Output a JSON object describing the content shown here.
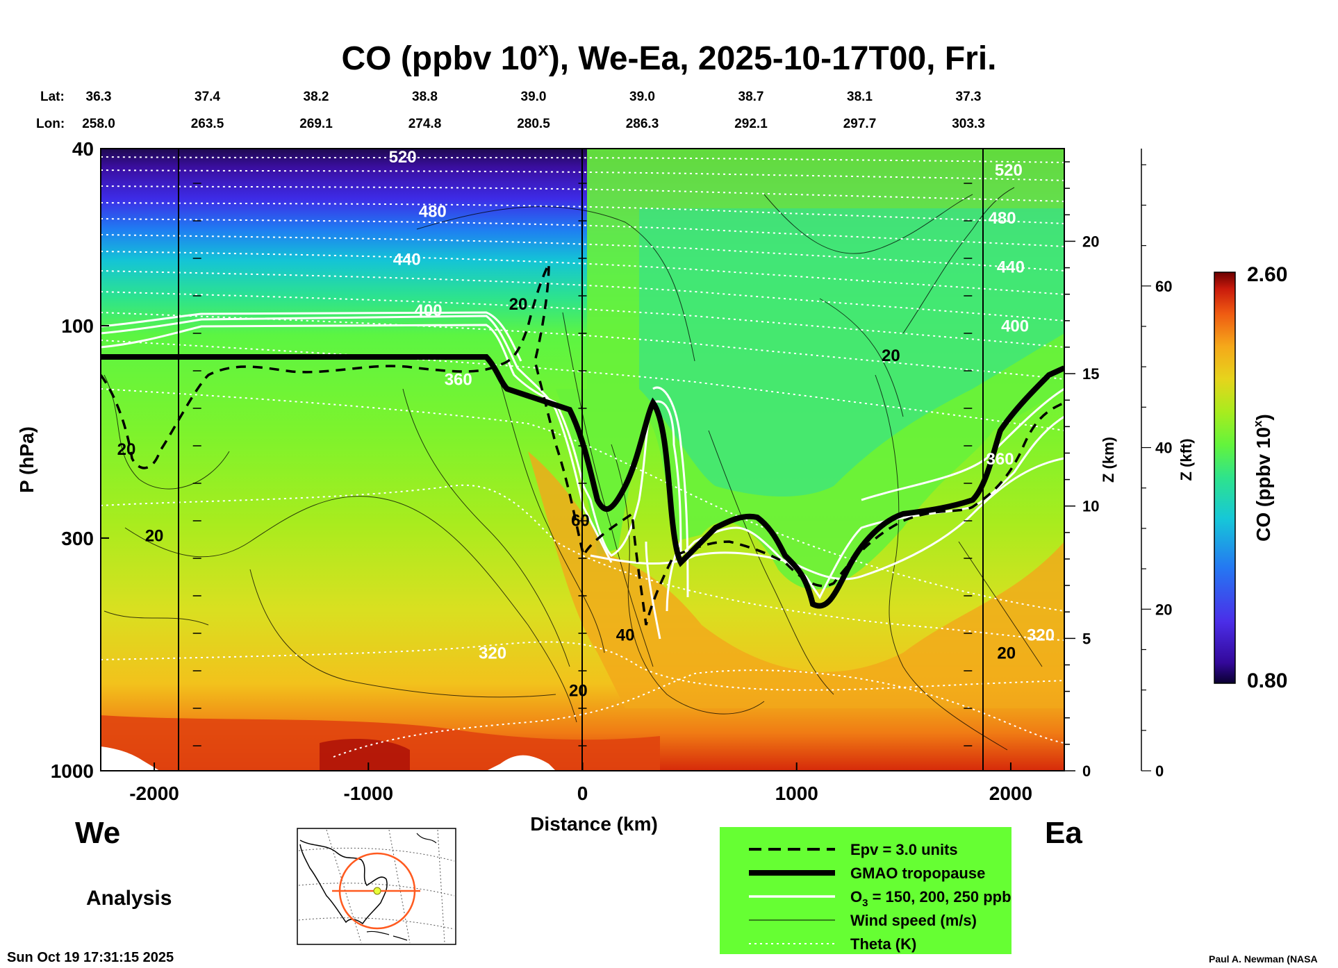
{
  "chart_data": {
    "type": "heatmap",
    "title": "CO (ppbv 10",
    "title_superscript": "x",
    "title_suffix": "), We-Ea, 2025-10-17T00, Fri.",
    "xlabel": "Distance (km)",
    "ylabel": "P (hPa)",
    "xlim": [
      -2250,
      2250
    ],
    "ylim": [
      1000,
      40
    ],
    "x_ticks": [
      -2000,
      -1000,
      0,
      1000,
      2000
    ],
    "y_ticks": [
      1000,
      300,
      100,
      40
    ],
    "z_km_label": "Z (km)",
    "z_km_ticks": [
      0,
      5,
      10,
      15,
      20
    ],
    "z_kft_label": "Z (kft)",
    "z_kft_ticks": [
      0,
      20,
      40,
      60
    ],
    "lat_label": "Lat:",
    "lon_label": "Lon:",
    "lat_values": [
      "36.3",
      "37.4",
      "38.2",
      "38.8",
      "39.0",
      "39.0",
      "38.7",
      "38.1",
      "37.3"
    ],
    "lon_values": [
      "258.0",
      "263.5",
      "269.1",
      "274.8",
      "280.5",
      "286.3",
      "292.1",
      "297.7",
      "303.3"
    ],
    "left_end_label": "We",
    "right_end_label": "Ea",
    "colorbar": {
      "label": "CO (ppbv 10",
      "label_superscript": "x",
      "label_suffix": ")",
      "min_label": "0.80",
      "max_label": "2.60",
      "range": [
        0.8,
        2.6
      ]
    },
    "theta_contour_labels": [
      {
        "text": "520",
        "x": -840,
        "p": 43
      },
      {
        "text": "480",
        "x": -700,
        "p": 57
      },
      {
        "text": "440",
        "x": -820,
        "p": 73
      },
      {
        "text": "400",
        "x": -720,
        "p": 95
      },
      {
        "text": "360",
        "x": -580,
        "p": 136
      },
      {
        "text": "320",
        "x": -420,
        "p": 560
      },
      {
        "text": "520",
        "x": 1990,
        "p": 46
      },
      {
        "text": "480",
        "x": 1960,
        "p": 59
      },
      {
        "text": "440",
        "x": 2000,
        "p": 76
      },
      {
        "text": "400",
        "x": 2020,
        "p": 103
      },
      {
        "text": "360",
        "x": 1950,
        "p": 205
      },
      {
        "text": "320",
        "x": 2140,
        "p": 510
      }
    ],
    "wind_contour_labels": [
      {
        "text": "20",
        "x": -300,
        "p": 92
      },
      {
        "text": "20",
        "x": -2130,
        "p": 195
      },
      {
        "text": "20",
        "x": -2000,
        "p": 305
      },
      {
        "text": "60",
        "x": -10,
        "p": 282
      },
      {
        "text": "40",
        "x": 200,
        "p": 510
      },
      {
        "text": "20",
        "x": -20,
        "p": 680
      },
      {
        "text": "20",
        "x": 1440,
        "p": 120
      },
      {
        "text": "20",
        "x": 1980,
        "p": 560
      }
    ],
    "legend": [
      {
        "label": "Epv = 3.0 units",
        "style": "dashed-thick"
      },
      {
        "label": "GMAO tropopause",
        "style": "solid-very-thick"
      },
      {
        "label": "O",
        "label_subscript": "3",
        "label_suffix": " = 150, 200, 250 ppb",
        "style": "solid-white"
      },
      {
        "label": "Wind speed (m/s)",
        "style": "solid-thin"
      },
      {
        "label": "Theta (K)",
        "style": "dotted-white"
      }
    ],
    "legend_bg": "#66ff33"
  },
  "footer": {
    "analysis_label": "Analysis",
    "timestamp": "Sun Oct 19 17:31:15 2025",
    "credit": "Paul A. Newman (NASA"
  },
  "colors": {
    "background": "#ffffff",
    "ink": "#000000",
    "theta": "#ffffff",
    "map_track": "#ff5a1f",
    "map_marker": "#e8ff3a"
  }
}
